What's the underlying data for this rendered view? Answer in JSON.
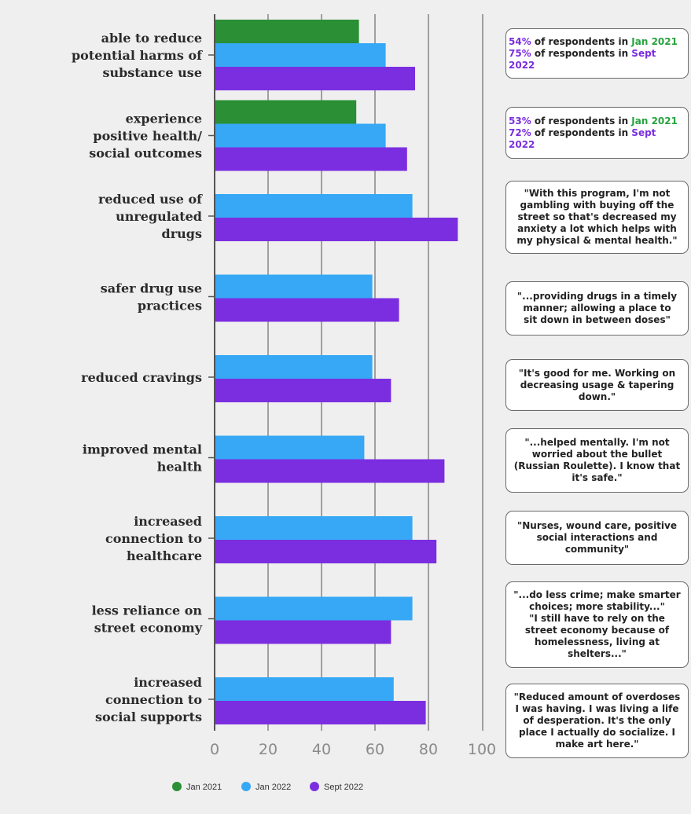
{
  "chart_data": {
    "type": "bar",
    "orientation": "horizontal",
    "categories": [
      [
        "able to reduce",
        "potential harms of",
        "substance use"
      ],
      [
        "experience",
        "positive health/",
        "social outcomes"
      ],
      [
        "reduced use of",
        "unregulated",
        "drugs"
      ],
      [
        "safer drug use",
        "practices"
      ],
      [
        "reduced cravings"
      ],
      [
        "improved mental",
        "health"
      ],
      [
        "increased",
        "connection to",
        "healthcare"
      ],
      [
        "less reliance on",
        "street economy"
      ],
      [
        "increased",
        "connection to",
        "social supports"
      ]
    ],
    "series": [
      {
        "name": "Jan 2021",
        "color": "#2a8f35",
        "values": [
          54,
          53,
          null,
          null,
          null,
          null,
          null,
          null,
          null
        ]
      },
      {
        "name": "Jan 2022",
        "color": "#36a8f5",
        "values": [
          64,
          64,
          74,
          59,
          59,
          56,
          74,
          74,
          67
        ]
      },
      {
        "name": "Sept 2022",
        "color": "#7b2ee0",
        "values": [
          75,
          72,
          91,
          69,
          66,
          86,
          83,
          66,
          79
        ]
      }
    ],
    "x_ticks": [
      "0",
      "20",
      "40",
      "60",
      "80",
      "100"
    ],
    "xlim": [
      0,
      100
    ],
    "grid": true,
    "legend": "bottom"
  },
  "notes": [
    {
      "type": "stat",
      "lines": [
        {
          "pct": "54%",
          "text": " of respondents in ",
          "period": "Jan 2021",
          "period_color": "jan"
        },
        {
          "pct": "75%",
          "text": " of respondents in ",
          "period": "Sept 2022",
          "period_color": "sep"
        }
      ]
    },
    {
      "type": "stat",
      "lines": [
        {
          "pct": "53%",
          "text": " of respondents in ",
          "period": "Jan 2021",
          "period_color": "jan"
        },
        {
          "pct": "72%",
          "text": " of respondents in ",
          "period": "Sept 2022",
          "period_color": "sep"
        }
      ]
    },
    {
      "type": "quote",
      "text": "\"With this program, I'm not\ngambling with buying off the\nstreet so that's decreased my\nanxiety a lot which helps with\nmy physical & mental health.\""
    },
    {
      "type": "quote",
      "text": "\"...providing drugs in a timely\nmanner; allowing a place to\nsit down in between doses\""
    },
    {
      "type": "quote",
      "text": "\"It's good for me. Working on\ndecreasing usage & tapering\ndown.\""
    },
    {
      "type": "quote",
      "text": "\"...helped mentally. I'm not\nworried about the bullet\n(Russian Roulette). I know that\nit's safe.\""
    },
    {
      "type": "quote",
      "text": "\"Nurses, wound care, positive\nsocial interactions and\ncommunity\""
    },
    {
      "type": "quote",
      "text": "\"...do less crime; make smarter\nchoices; more stability...\"\n\"I still have to rely on the\nstreet economy because of\nhomelessness, living at\nshelters...\""
    },
    {
      "type": "quote",
      "text": "\"Reduced amount of overdoses\nI was having. I was living a life\nof desperation. It's the only\nplace I actually do socialize. I\nmake art here.\""
    }
  ],
  "colors": {
    "jan": "#27a33f",
    "sep": "#7b2ee0",
    "grid": "#8c8c8c",
    "axis": "#555555"
  }
}
